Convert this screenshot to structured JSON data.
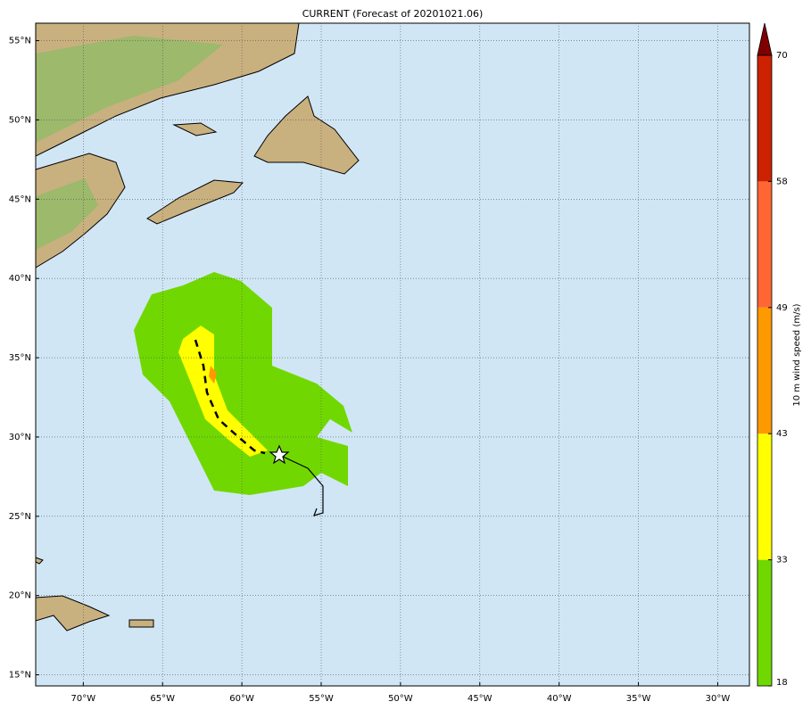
{
  "title": "CURRENT (Forecast of 20201021.06)",
  "map": {
    "lonlim": [
      -73,
      -28
    ],
    "latlim": [
      14.3,
      56.1
    ],
    "grid": true,
    "xticks": [
      {
        "value": -70,
        "label": "70°W"
      },
      {
        "value": -65,
        "label": "65°W"
      },
      {
        "value": -60,
        "label": "60°W"
      },
      {
        "value": -55,
        "label": "55°W"
      },
      {
        "value": -50,
        "label": "50°W"
      },
      {
        "value": -45,
        "label": "45°W"
      },
      {
        "value": -40,
        "label": "40°W"
      },
      {
        "value": -35,
        "label": "35°W"
      },
      {
        "value": -30,
        "label": "30°W"
      }
    ],
    "yticks": [
      {
        "value": 15,
        "label": "15°N"
      },
      {
        "value": 20,
        "label": "20°N"
      },
      {
        "value": 25,
        "label": "25°N"
      },
      {
        "value": 30,
        "label": "30°N"
      },
      {
        "value": 35,
        "label": "35°N"
      },
      {
        "value": 40,
        "label": "40°N"
      },
      {
        "value": 45,
        "label": "45°N"
      },
      {
        "value": 50,
        "label": "50°N"
      },
      {
        "value": 55,
        "label": "55°N"
      }
    ]
  },
  "colorbar": {
    "label": "10 m wind speed (m/s)",
    "levels": [
      18,
      33,
      43,
      49,
      58,
      70
    ],
    "colors": [
      "#70d800",
      "#ffff00",
      "#ff9900",
      "#ff6633",
      "#cc2200"
    ],
    "extend_color": "#800000"
  }
}
